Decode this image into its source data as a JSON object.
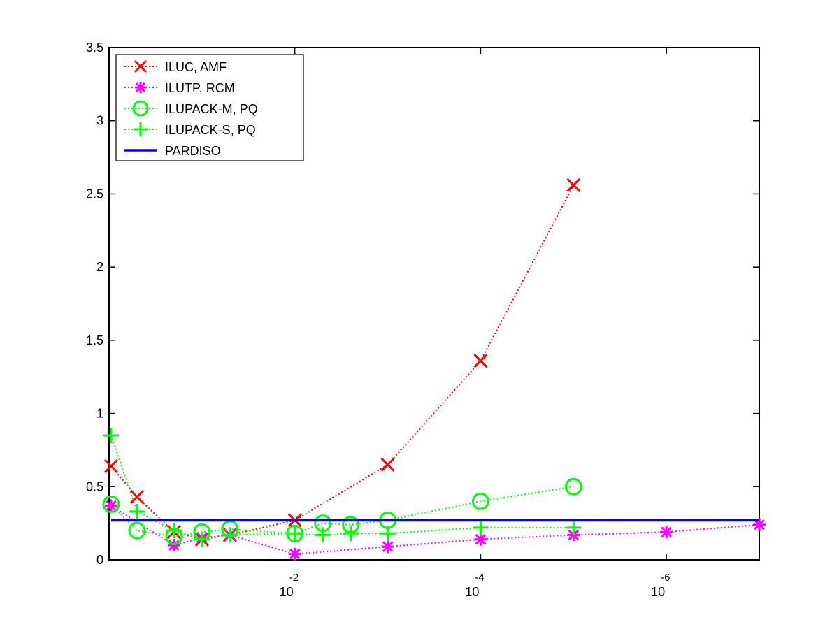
{
  "chart_data": {
    "type": "line",
    "title": "",
    "xlabel": "",
    "ylabel": "",
    "x_scale": "log-reversed",
    "xlim": [
      1,
      1e-07
    ],
    "ylim": [
      0,
      3.5
    ],
    "x_tick_labels": [
      {
        "value": 0.01,
        "base": "10",
        "exponent": "-2"
      },
      {
        "value": 0.0001,
        "base": "10",
        "exponent": "-4"
      },
      {
        "value": 1e-06,
        "base": "10",
        "exponent": "-6"
      }
    ],
    "y_ticks": [
      0,
      0.5,
      1,
      1.5,
      2,
      2.5,
      3,
      3.5
    ],
    "y_tick_labels": [
      "0",
      "0.5",
      "1",
      "1.5",
      "2",
      "2.5",
      "3",
      "3.5"
    ],
    "grid": false,
    "legend_position": "top-left",
    "series": [
      {
        "name": "ILUC, AMF",
        "color": "#ff0000",
        "marker": "x",
        "line": "dotted",
        "points": [
          [
            0.95,
            0.64
          ],
          [
            0.5,
            0.43
          ],
          [
            0.2,
            0.19
          ],
          [
            0.1,
            0.14
          ],
          [
            0.05,
            0.17
          ],
          [
            0.01,
            0.27
          ],
          [
            0.001,
            0.65
          ],
          [
            0.0001,
            1.36
          ],
          [
            1e-05,
            2.56
          ]
        ]
      },
      {
        "name": "ILUTP, RCM",
        "color": "#ff00ff",
        "marker": "asterisk",
        "line": "dotted",
        "points": [
          [
            0.95,
            0.37
          ],
          [
            0.2,
            0.1
          ],
          [
            0.1,
            0.15
          ],
          [
            0.05,
            0.17
          ],
          [
            0.01,
            0.04
          ],
          [
            0.001,
            0.09
          ],
          [
            0.0001,
            0.14
          ],
          [
            1e-05,
            0.17
          ],
          [
            1e-06,
            0.19
          ],
          [
            1e-07,
            0.24
          ]
        ]
      },
      {
        "name": "ILUPACK-M, PQ",
        "color": "#00ff00",
        "marker": "circle",
        "line": "dotted",
        "points": [
          [
            0.95,
            0.38
          ],
          [
            0.5,
            0.2
          ],
          [
            0.2,
            0.16
          ],
          [
            0.1,
            0.19
          ],
          [
            0.05,
            0.21
          ],
          [
            0.01,
            0.18
          ],
          [
            0.005,
            0.25
          ],
          [
            0.0025,
            0.24
          ],
          [
            0.001,
            0.27
          ],
          [
            0.0001,
            0.4
          ],
          [
            1e-05,
            0.5
          ]
        ]
      },
      {
        "name": "ILUPACK-S, PQ",
        "color": "#00ff00",
        "marker": "plus",
        "line": "dotted",
        "points": [
          [
            0.95,
            0.85
          ],
          [
            0.5,
            0.33
          ],
          [
            0.2,
            0.2
          ],
          [
            0.1,
            0.14
          ],
          [
            0.05,
            0.17
          ],
          [
            0.01,
            0.18
          ],
          [
            0.005,
            0.17
          ],
          [
            0.0025,
            0.18
          ],
          [
            0.001,
            0.18
          ],
          [
            0.0001,
            0.22
          ],
          [
            1e-05,
            0.22
          ]
        ]
      },
      {
        "name": "PARDISO",
        "color": "#0000ff",
        "marker": "none",
        "line": "solid",
        "points": [
          [
            0.95,
            0.27
          ],
          [
            1e-07,
            0.27
          ]
        ]
      }
    ]
  }
}
